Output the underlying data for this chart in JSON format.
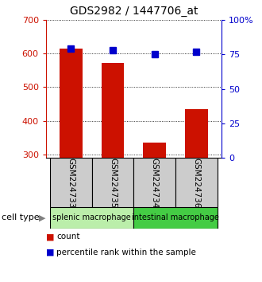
{
  "title": "GDS2982 / 1447706_at",
  "samples": [
    "GSM224733",
    "GSM224735",
    "GSM224734",
    "GSM224736"
  ],
  "counts": [
    615,
    573,
    335,
    435
  ],
  "percentile_ranks": [
    79,
    78,
    75,
    77
  ],
  "ylim_left": [
    290,
    700
  ],
  "ylim_right": [
    0,
    100
  ],
  "yticks_left": [
    300,
    400,
    500,
    600,
    700
  ],
  "yticks_right": [
    0,
    25,
    50,
    75,
    100
  ],
  "ytick_right_labels": [
    "0",
    "25",
    "50",
    "75",
    "100%"
  ],
  "bar_color": "#cc1100",
  "marker_color": "#0000cc",
  "cell_types": [
    {
      "label": "splenic macrophage",
      "span": [
        0,
        2
      ],
      "color": "#bbeeaa"
    },
    {
      "label": "intestinal macrophage",
      "span": [
        2,
        4
      ],
      "color": "#44cc44"
    }
  ],
  "sample_box_color": "#cccccc",
  "legend_count_color": "#cc1100",
  "legend_pct_color": "#0000cc",
  "bar_width": 0.55,
  "marker_size": 6
}
